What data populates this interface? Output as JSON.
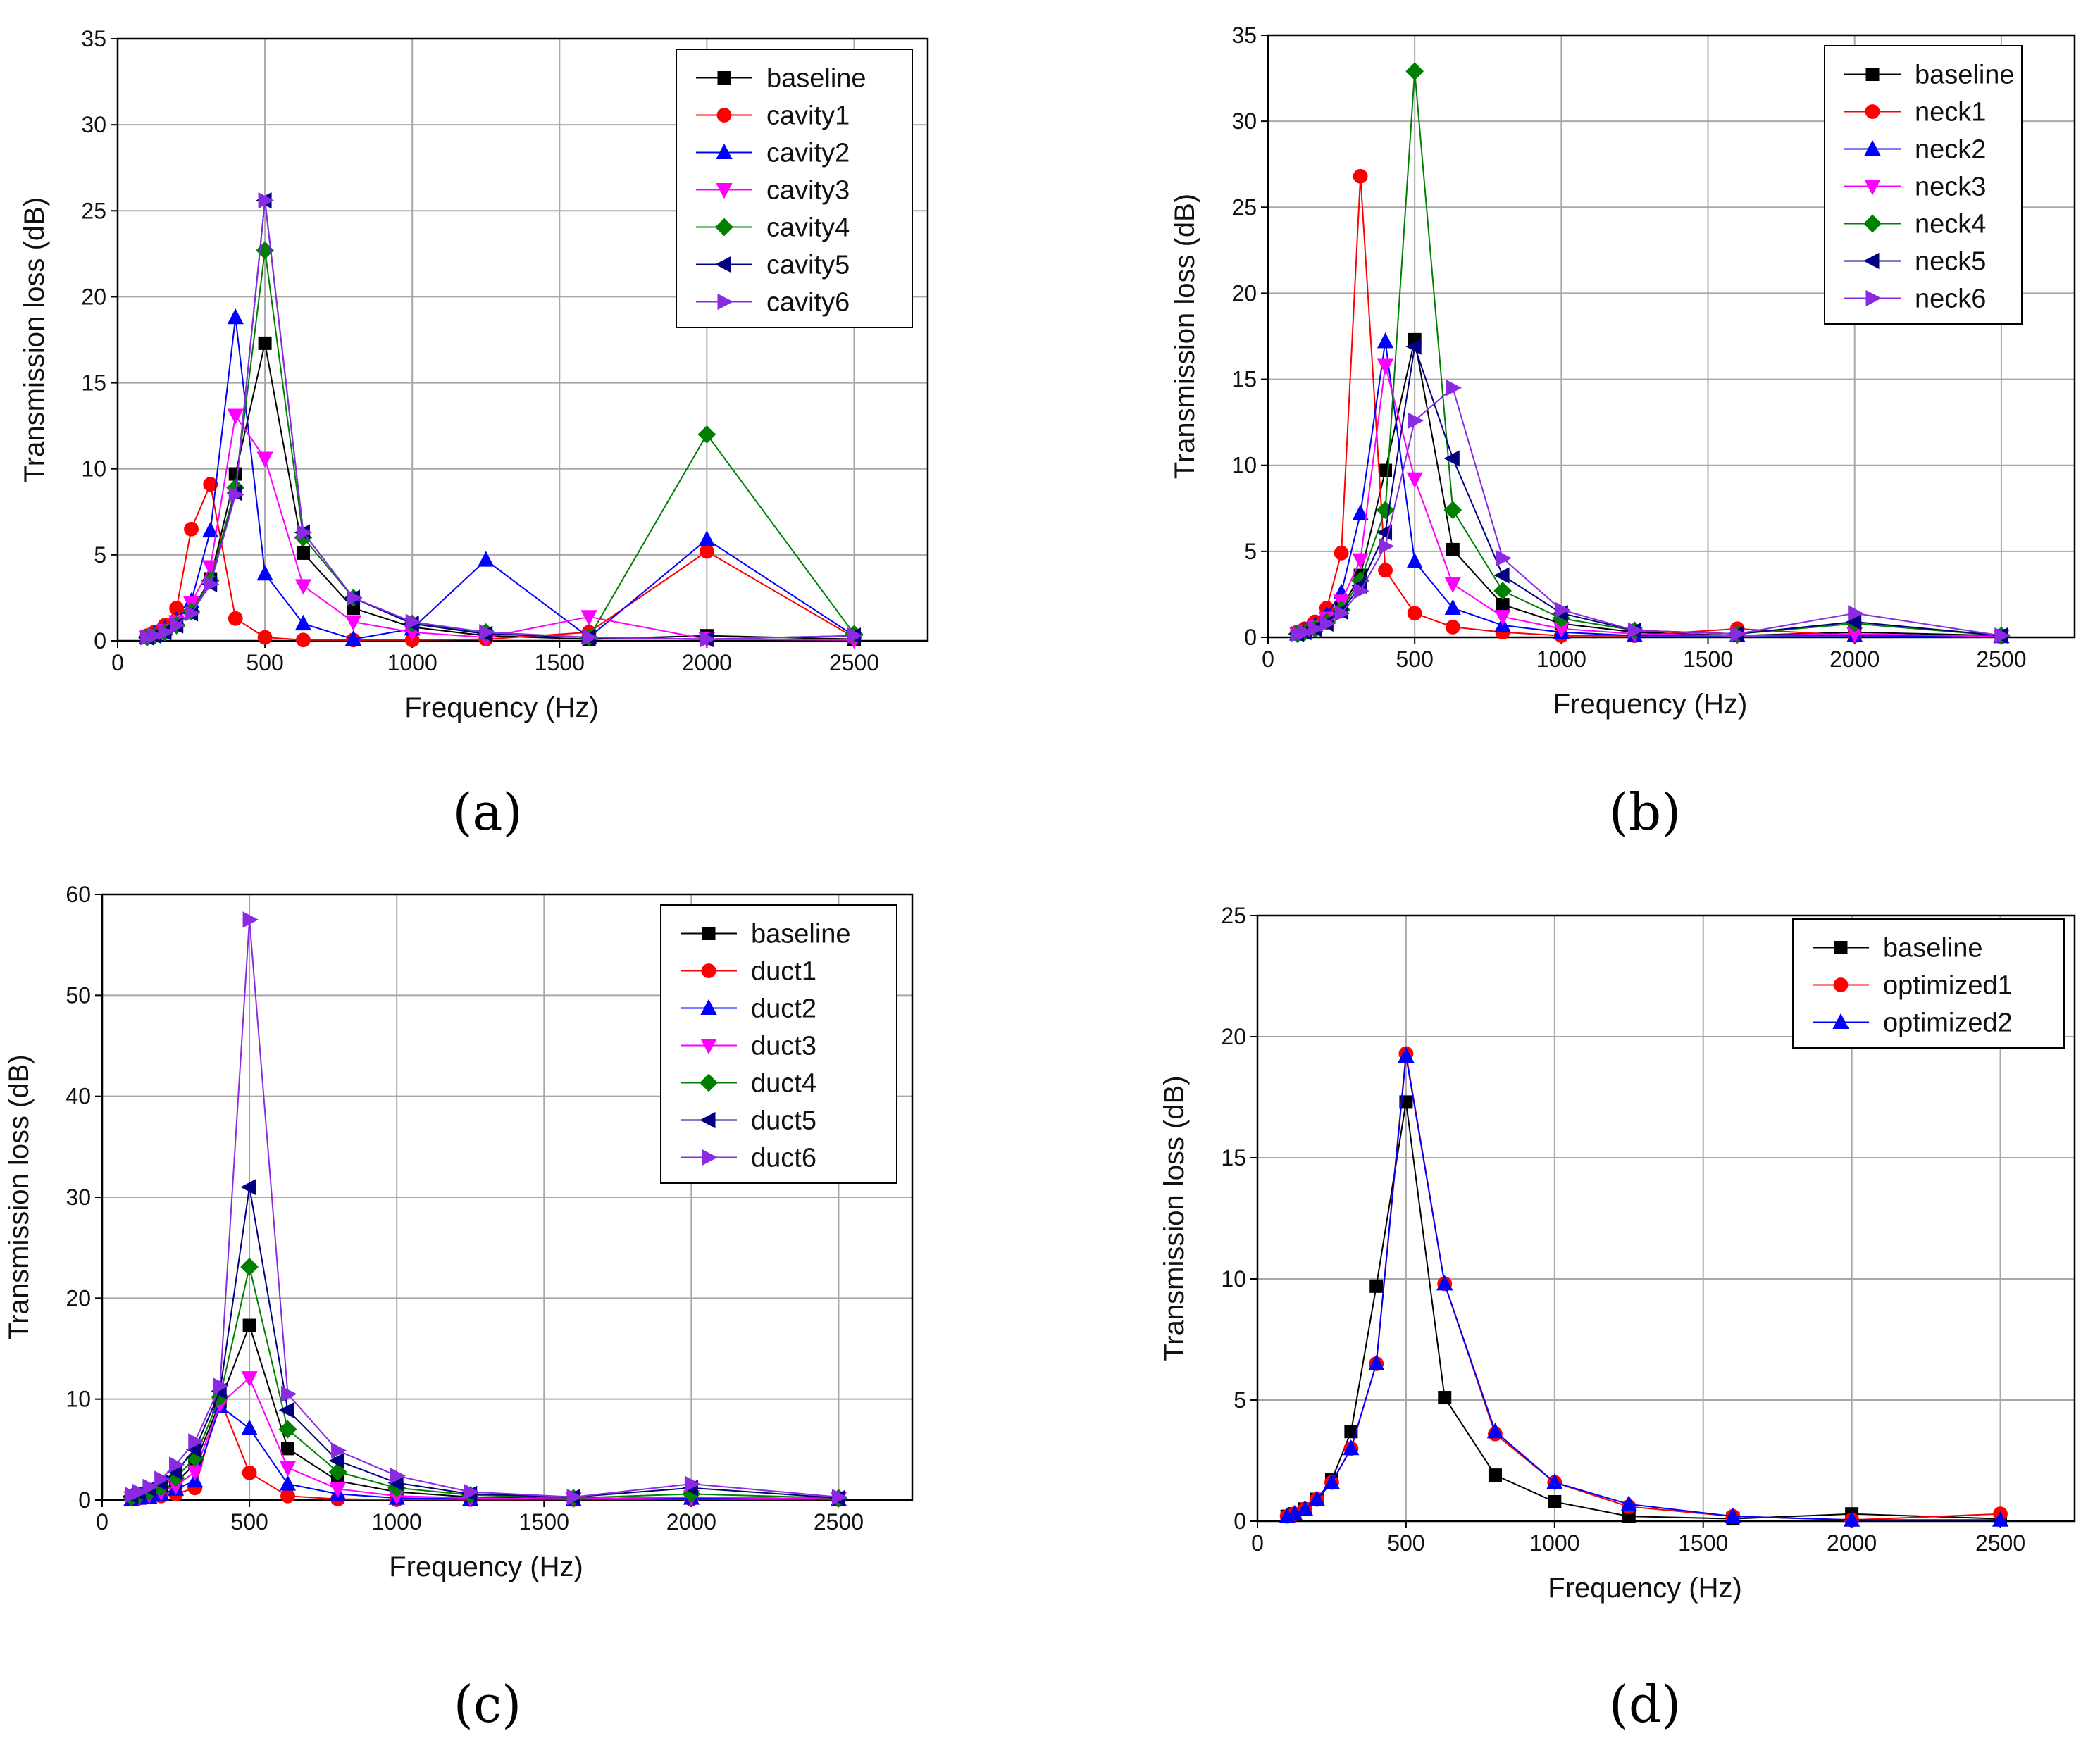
{
  "figure": {
    "panel_labels": [
      "(a)",
      "(b)",
      "(c)",
      "(d)"
    ]
  },
  "chart_data": [
    {
      "type": "line",
      "panel": "(a)",
      "xlabel": "Frequency (Hz)",
      "ylabel": "Transmission loss (dB)",
      "xlim": [
        0,
        2750
      ],
      "ylim": [
        0,
        35
      ],
      "xticks": [
        0,
        500,
        1000,
        1500,
        2000,
        2500
      ],
      "yticks": [
        0,
        5,
        10,
        15,
        20,
        25,
        30,
        35
      ],
      "grid": true,
      "legend_position": "top-right",
      "x": [
        100,
        125,
        160,
        200,
        250,
        315,
        400,
        500,
        630,
        800,
        1000,
        1250,
        1600,
        2000,
        2500
      ],
      "series": [
        {
          "name": "baseline",
          "color": "#000000",
          "marker": "square",
          "values": [
            0.2,
            0.3,
            0.5,
            0.9,
            1.7,
            3.6,
            9.7,
            17.3,
            5.1,
            1.9,
            0.8,
            0.3,
            0.1,
            0.3,
            0.1
          ]
        },
        {
          "name": "cavity1",
          "color": "#ff0000",
          "marker": "circle",
          "values": [
            0.3,
            0.5,
            0.9,
            1.9,
            6.5,
            9.1,
            1.3,
            0.2,
            0.05,
            0.05,
            0.05,
            0.1,
            0.5,
            5.2,
            0.2
          ]
        },
        {
          "name": "cavity2",
          "color": "#0000ff",
          "marker": "triangle-up",
          "values": [
            0.2,
            0.4,
            0.7,
            1.2,
            2.3,
            6.4,
            18.8,
            3.9,
            1.0,
            0.1,
            0.7,
            4.7,
            0.2,
            5.9,
            0.3
          ]
        },
        {
          "name": "cavity3",
          "color": "#ff00ff",
          "marker": "triangle-down",
          "values": [
            0.2,
            0.3,
            0.6,
            1.1,
            2.2,
            4.3,
            13.1,
            10.6,
            3.2,
            1.1,
            0.5,
            0.2,
            1.4,
            0.1,
            0.05
          ]
        },
        {
          "name": "cavity4",
          "color": "#008000",
          "marker": "diamond",
          "values": [
            0.2,
            0.3,
            0.5,
            0.9,
            1.7,
            3.5,
            8.9,
            22.7,
            6.0,
            2.5,
            1.0,
            0.5,
            0.2,
            12.0,
            0.4
          ]
        },
        {
          "name": "cavity5",
          "color": "#000080",
          "marker": "triangle-left",
          "values": [
            0.2,
            0.3,
            0.5,
            0.9,
            1.6,
            3.3,
            8.6,
            25.6,
            6.3,
            2.5,
            1.0,
            0.4,
            0.2,
            0.1,
            0.3
          ]
        },
        {
          "name": "cavity6",
          "color": "#8a2be2",
          "marker": "triangle-right",
          "values": [
            0.2,
            0.3,
            0.5,
            0.9,
            1.6,
            3.3,
            8.5,
            25.6,
            6.3,
            2.5,
            1.1,
            0.5,
            0.2,
            0.1,
            0.3
          ]
        }
      ]
    },
    {
      "type": "line",
      "panel": "(b)",
      "xlabel": "Frequency (Hz)",
      "ylabel": "Transmission loss (dB)",
      "xlim": [
        0,
        2750
      ],
      "ylim": [
        0,
        35
      ],
      "xticks": [
        0,
        500,
        1000,
        1500,
        2000,
        2500
      ],
      "yticks": [
        0,
        5,
        10,
        15,
        20,
        25,
        30,
        35
      ],
      "grid": true,
      "legend_position": "top-right",
      "x": [
        100,
        125,
        160,
        200,
        250,
        315,
        400,
        500,
        630,
        800,
        1000,
        1250,
        1600,
        2000,
        2500
      ],
      "series": [
        {
          "name": "baseline",
          "color": "#000000",
          "marker": "square",
          "values": [
            0.2,
            0.3,
            0.5,
            0.9,
            1.7,
            3.6,
            9.7,
            17.3,
            5.1,
            1.9,
            0.8,
            0.3,
            0.1,
            0.3,
            0.1
          ]
        },
        {
          "name": "neck1",
          "color": "#ff0000",
          "marker": "circle",
          "values": [
            0.3,
            0.5,
            0.9,
            1.7,
            4.9,
            26.8,
            3.9,
            1.4,
            0.6,
            0.3,
            0.1,
            0.1,
            0.5,
            0.1,
            0.05
          ]
        },
        {
          "name": "neck2",
          "color": "#0000ff",
          "marker": "triangle-up",
          "values": [
            0.2,
            0.4,
            0.7,
            1.3,
            2.6,
            7.2,
            17.2,
            4.4,
            1.7,
            0.7,
            0.3,
            0.1,
            0.1,
            0.1,
            0.05
          ]
        },
        {
          "name": "neck3",
          "color": "#ff00ff",
          "marker": "triangle-down",
          "values": [
            0.2,
            0.3,
            0.6,
            1.1,
            2.1,
            4.5,
            15.8,
            9.2,
            3.1,
            1.2,
            0.5,
            0.2,
            0.1,
            0.2,
            0.05
          ]
        },
        {
          "name": "neck4",
          "color": "#008000",
          "marker": "diamond",
          "values": [
            0.2,
            0.3,
            0.5,
            0.9,
            1.6,
            3.3,
            7.4,
            32.9,
            7.4,
            2.7,
            1.1,
            0.4,
            0.2,
            0.8,
            0.1
          ]
        },
        {
          "name": "neck5",
          "color": "#000080",
          "marker": "triangle-left",
          "values": [
            0.2,
            0.3,
            0.5,
            0.8,
            1.5,
            3.0,
            6.1,
            16.9,
            10.4,
            3.6,
            1.4,
            0.4,
            0.2,
            0.9,
            0.1
          ]
        },
        {
          "name": "neck6",
          "color": "#8a2be2",
          "marker": "triangle-right",
          "values": [
            0.2,
            0.3,
            0.5,
            0.8,
            1.4,
            2.7,
            5.3,
            12.6,
            14.5,
            4.6,
            1.6,
            0.4,
            0.2,
            1.4,
            0.1
          ]
        }
      ]
    },
    {
      "type": "line",
      "panel": "(c)",
      "xlabel": "Frequency (Hz)",
      "ylabel": "Transmission loss (dB)",
      "xlim": [
        0,
        2750
      ],
      "ylim": [
        0,
        60
      ],
      "xticks": [
        0,
        500,
        1000,
        1500,
        2000,
        2500
      ],
      "yticks": [
        0,
        10,
        20,
        30,
        40,
        50,
        60
      ],
      "grid": true,
      "legend_position": "top-right",
      "x": [
        100,
        125,
        160,
        200,
        250,
        315,
        400,
        500,
        630,
        800,
        1000,
        1250,
        1600,
        2000,
        2500
      ],
      "series": [
        {
          "name": "baseline",
          "color": "#000000",
          "marker": "square",
          "values": [
            0.2,
            0.3,
            0.5,
            0.9,
            1.7,
            3.6,
            9.7,
            17.3,
            5.1,
            1.9,
            0.8,
            0.3,
            0.1,
            0.3,
            0.1
          ]
        },
        {
          "name": "duct1",
          "color": "#ff0000",
          "marker": "circle",
          "values": [
            0.1,
            0.2,
            0.3,
            0.4,
            0.6,
            1.2,
            10.0,
            2.7,
            0.4,
            0.1,
            0.05,
            0.05,
            0.05,
            0.1,
            0.05
          ]
        },
        {
          "name": "duct2",
          "color": "#0000ff",
          "marker": "triangle-up",
          "values": [
            0.1,
            0.2,
            0.3,
            0.6,
            1.1,
            1.9,
            9.3,
            7.1,
            1.6,
            0.6,
            0.2,
            0.1,
            0.05,
            0.2,
            0.05
          ]
        },
        {
          "name": "duct3",
          "color": "#ff00ff",
          "marker": "triangle-down",
          "values": [
            0.2,
            0.3,
            0.5,
            0.8,
            1.4,
            2.8,
            9.5,
            12.1,
            3.2,
            1.1,
            0.4,
            0.2,
            0.1,
            0.3,
            0.1
          ]
        },
        {
          "name": "duct4",
          "color": "#008000",
          "marker": "diamond",
          "values": [
            0.3,
            0.5,
            0.8,
            1.3,
            2.2,
            4.2,
            10.2,
            23.1,
            7.0,
            2.8,
            1.2,
            0.5,
            0.2,
            0.6,
            0.2
          ]
        },
        {
          "name": "duct5",
          "color": "#000080",
          "marker": "triangle-left",
          "values": [
            0.4,
            0.7,
            1.1,
            1.7,
            2.8,
            5.0,
            10.8,
            31.0,
            8.9,
            3.9,
            1.7,
            0.6,
            0.3,
            1.2,
            0.2
          ]
        },
        {
          "name": "duct6",
          "color": "#8a2be2",
          "marker": "triangle-right",
          "values": [
            0.5,
            0.8,
            1.3,
            2.1,
            3.5,
            5.8,
            11.3,
            57.5,
            10.5,
            4.9,
            2.4,
            0.8,
            0.3,
            1.6,
            0.3
          ]
        }
      ]
    },
    {
      "type": "line",
      "panel": "(d)",
      "xlabel": "Frequency (Hz)",
      "ylabel": "Transmission loss (dB)",
      "xlim": [
        0,
        2750
      ],
      "ylim": [
        0,
        25
      ],
      "xticks": [
        0,
        500,
        1000,
        1500,
        2000,
        2500
      ],
      "yticks": [
        0,
        5,
        10,
        15,
        20,
        25
      ],
      "grid": true,
      "legend_position": "top-right",
      "x": [
        100,
        125,
        160,
        200,
        250,
        315,
        400,
        500,
        630,
        800,
        1000,
        1250,
        1600,
        2000,
        2500
      ],
      "series": [
        {
          "name": "baseline",
          "color": "#000000",
          "marker": "square",
          "values": [
            0.2,
            0.3,
            0.5,
            0.9,
            1.7,
            3.7,
            9.7,
            17.3,
            5.1,
            1.9,
            0.8,
            0.2,
            0.1,
            0.3,
            0.1
          ]
        },
        {
          "name": "optimized1",
          "color": "#ff0000",
          "marker": "circle",
          "values": [
            0.2,
            0.3,
            0.5,
            0.9,
            1.6,
            3.0,
            6.5,
            19.3,
            9.8,
            3.6,
            1.6,
            0.6,
            0.2,
            0.05,
            0.3
          ]
        },
        {
          "name": "optimized2",
          "color": "#0000ff",
          "marker": "triangle-up",
          "values": [
            0.2,
            0.3,
            0.5,
            0.9,
            1.6,
            3.0,
            6.5,
            19.2,
            9.8,
            3.7,
            1.6,
            0.7,
            0.2,
            0.05,
            0.05
          ]
        }
      ]
    }
  ]
}
